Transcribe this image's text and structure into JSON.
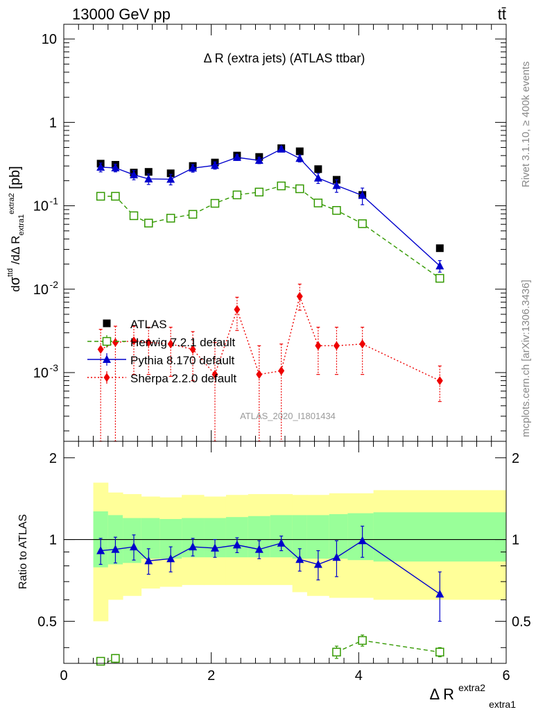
{
  "header": {
    "energy_label": "13000 GeV pp",
    "process_label": "tt̄"
  },
  "side_labels": {
    "rivet": "Rivet 3.1.10, ≥ 400k events",
    "mcplots": "mcplots.cern.ch [arXiv:1306.3436]"
  },
  "chart_data": [
    {
      "type": "scatter",
      "title": "Δ R (extra jets) (ATLAS ttbar)",
      "ylabel": "dσ^ttd / dΔ R_extra1^extra2 [pb]",
      "yscale": "log",
      "ylim": [
        0.00015,
        15
      ],
      "xlim": [
        0,
        6
      ],
      "watermark": "ATLAS_2020_I1801434",
      "yticks": [
        {
          "v": 0.001,
          "base": "10",
          "exp": "-3"
        },
        {
          "v": 0.01,
          "base": "10",
          "exp": "-2"
        },
        {
          "v": 0.1,
          "base": "10",
          "exp": "-1"
        },
        {
          "v": 1,
          "label": "1"
        },
        {
          "v": 10,
          "label": "10"
        }
      ],
      "legend_position": "bottom-left",
      "series": [
        {
          "name": "ATLAS",
          "color": "#000000",
          "marker": "square",
          "x": [
            0.5,
            0.7,
            0.95,
            1.15,
            1.45,
            1.75,
            2.05,
            2.35,
            2.65,
            2.95,
            3.2,
            3.45,
            3.7,
            4.05,
            5.1
          ],
          "y": [
            0.32,
            0.31,
            0.25,
            0.255,
            0.245,
            0.3,
            0.33,
            0.4,
            0.385,
            0.49,
            0.45,
            0.275,
            0.205,
            0.135,
            0.031
          ],
          "err": [
            0.01,
            0.01,
            0.008,
            0.008,
            0.008,
            0.01,
            0.01,
            0.01,
            0.01,
            0.015,
            0.015,
            0.01,
            0.008,
            0.006,
            0.002
          ]
        },
        {
          "name": "Herwig 7.2.1 default",
          "color": "#339900",
          "marker": "open-square",
          "line": "dashed",
          "x": [
            0.5,
            0.7,
            0.95,
            1.15,
            1.45,
            1.75,
            2.05,
            2.35,
            2.65,
            2.95,
            3.2,
            3.45,
            3.7,
            4.05,
            5.1
          ],
          "y": [
            0.13,
            0.13,
            0.076,
            0.062,
            0.071,
            0.079,
            0.107,
            0.135,
            0.146,
            0.173,
            0.16,
            0.108,
            0.088,
            0.061,
            0.0135
          ],
          "err": [
            0.004,
            0.004,
            0.003,
            0.002,
            0.002,
            0.002,
            0.003,
            0.004,
            0.004,
            0.005,
            0.005,
            0.003,
            0.003,
            0.002,
            0.001
          ]
        },
        {
          "name": "Pythia 8.170 default",
          "color": "#0000cc",
          "marker": "triangle",
          "line": "solid",
          "x": [
            0.5,
            0.7,
            0.95,
            1.15,
            1.45,
            1.75,
            2.05,
            2.35,
            2.65,
            2.95,
            3.2,
            3.45,
            3.7,
            4.05,
            5.1
          ],
          "y": [
            0.29,
            0.285,
            0.235,
            0.21,
            0.208,
            0.283,
            0.305,
            0.38,
            0.35,
            0.478,
            0.37,
            0.215,
            0.175,
            0.133,
            0.019
          ],
          "err": [
            0.035,
            0.03,
            0.03,
            0.03,
            0.03,
            0.03,
            0.03,
            0.03,
            0.03,
            0.035,
            0.035,
            0.03,
            0.03,
            0.03,
            0.003
          ]
        },
        {
          "name": "Sherpa 2.2.0 default",
          "color": "#ee0000",
          "marker": "diamond",
          "line": "dotted",
          "x": [
            0.5,
            0.7,
            0.95,
            1.15,
            1.45,
            1.75,
            2.05,
            2.35,
            2.65,
            2.95,
            3.2,
            3.45,
            3.7,
            4.05,
            5.1
          ],
          "y": [
            0.0019,
            0.0023,
            0.0024,
            0.0023,
            0.0022,
            0.0019,
            0.00095,
            0.0057,
            0.00095,
            0.00105,
            0.0082,
            0.0021,
            0.0021,
            0.0022,
            0.0008
          ],
          "lo": [
            5e-05,
            5e-05,
            0.00095,
            0.00095,
            0.0009,
            0.0008,
            5e-05,
            0.0032,
            5e-05,
            5e-05,
            0.0056,
            0.00095,
            0.00095,
            0.00095,
            0.00045
          ],
          "hi": [
            0.0033,
            0.0036,
            0.0036,
            0.0035,
            0.0035,
            0.0031,
            0.0023,
            0.008,
            0.0021,
            0.0022,
            0.0115,
            0.0035,
            0.0035,
            0.0035,
            0.0012
          ]
        }
      ]
    },
    {
      "type": "scatter",
      "ylabel": "Ratio to ATLAS",
      "xlabel": "Δ R_extra1^extra2",
      "xlabel_base": "Δ R",
      "xlabel_sup": "extra2",
      "xlabel_sub": "extra1",
      "xlim": [
        0,
        6
      ],
      "ylim": [
        0.35,
        2.3
      ],
      "yscale": "log",
      "xticks": [
        0,
        2,
        4,
        6
      ],
      "yticks": [
        {
          "v": 0.5,
          "label": "0.5"
        },
        {
          "v": 1,
          "label": "1"
        },
        {
          "v": 2,
          "label": "2"
        }
      ],
      "bands": {
        "edges": [
          0.4,
          0.6,
          0.8,
          1.05,
          1.3,
          1.6,
          1.9,
          2.2,
          2.5,
          2.8,
          3.1,
          3.3,
          3.6,
          3.85,
          4.2,
          6.0
        ],
        "inner_lo": [
          0.79,
          0.81,
          0.82,
          0.85,
          0.85,
          0.86,
          0.86,
          0.86,
          0.86,
          0.86,
          0.85,
          0.85,
          0.85,
          0.84,
          0.83
        ],
        "inner_hi": [
          1.27,
          1.23,
          1.2,
          1.2,
          1.19,
          1.2,
          1.2,
          1.21,
          1.22,
          1.23,
          1.23,
          1.23,
          1.24,
          1.25,
          1.26
        ],
        "outer_lo": [
          0.5,
          0.6,
          0.62,
          0.66,
          0.67,
          0.68,
          0.68,
          0.68,
          0.68,
          0.68,
          0.64,
          0.62,
          0.61,
          0.61,
          0.6
        ],
        "outer_hi": [
          1.62,
          1.49,
          1.47,
          1.44,
          1.43,
          1.46,
          1.44,
          1.46,
          1.47,
          1.47,
          1.46,
          1.46,
          1.48,
          1.48,
          1.52
        ],
        "inner_color": "#99ff99",
        "outer_color": "#ffff99"
      },
      "series": [
        {
          "name": "Pythia 8.170 default",
          "color": "#0000cc",
          "marker": "triangle",
          "line": "solid",
          "x": [
            0.5,
            0.7,
            0.95,
            1.15,
            1.45,
            1.75,
            2.05,
            2.35,
            2.65,
            2.95,
            3.2,
            3.45,
            3.7,
            4.05,
            5.1
          ],
          "y": [
            0.91,
            0.92,
            0.94,
            0.835,
            0.85,
            0.94,
            0.93,
            0.955,
            0.92,
            0.97,
            0.845,
            0.81,
            0.86,
            0.99,
            0.63
          ],
          "err": [
            0.1,
            0.1,
            0.1,
            0.09,
            0.09,
            0.07,
            0.07,
            0.06,
            0.07,
            0.06,
            0.08,
            0.1,
            0.13,
            0.13,
            0.13
          ]
        },
        {
          "name": "Herwig 7.2.1 default",
          "color": "#339900",
          "marker": "open-square",
          "line": "dashed",
          "segments": [
            {
              "x": [
                0.5,
                0.7
              ],
              "y": [
                0.345,
                0.365
              ],
              "err": [
                0.012,
                0.012
              ]
            },
            {
              "x": [
                3.7,
                4.05,
                5.1
              ],
              "y": [
                0.385,
                0.425,
                0.385
              ],
              "err": [
                0.02,
                0.02,
                0.015
              ]
            }
          ]
        }
      ]
    }
  ]
}
